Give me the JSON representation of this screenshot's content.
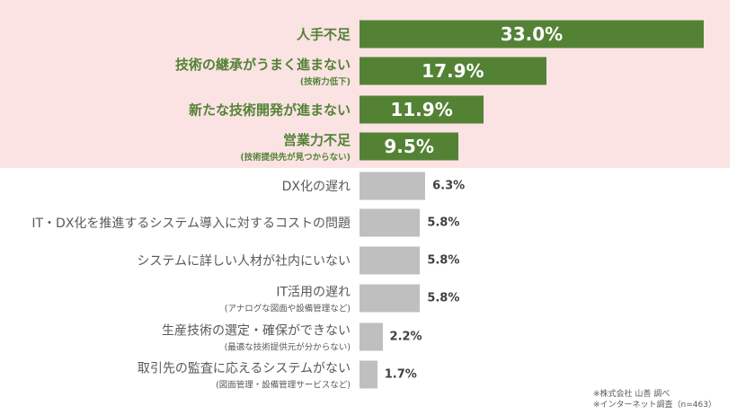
{
  "chart_data": {
    "type": "bar",
    "orientation": "horizontal",
    "categories": [
      "人手不足",
      "技術の継承がうまく進まない",
      "新たな技術開発が進まない",
      "営業力不足",
      "DX化の遅れ",
      "IT・DX化を推進するシステム導入に対するコストの問題",
      "システムに詳しい人材が社内にいない",
      "IT活用の遅れ",
      "生産技術の選定・確保ができない",
      "取引先の監査に応えるシステムがない"
    ],
    "sublabels": [
      "",
      "(技術力低下)",
      "",
      "(技術提供先が見つからない)",
      "",
      "",
      "",
      "(アナログな図面や設備管理など)",
      "(最適な技術提供元が分からない)",
      "(図面管理・設備管理サービスなど)"
    ],
    "values": [
      33.0,
      17.9,
      11.9,
      9.5,
      6.3,
      5.8,
      5.8,
      5.8,
      2.2,
      1.7
    ],
    "value_labels": [
      "33.0%",
      "17.9%",
      "11.9%",
      "9.5%",
      "6.3%",
      "5.8%",
      "5.8%",
      "5.8%",
      "2.2%",
      "1.7%"
    ],
    "highlighted": [
      true,
      true,
      true,
      true,
      false,
      false,
      false,
      false,
      false,
      false
    ],
    "xlim": [
      0,
      35
    ],
    "colors": {
      "highlight": "#548235",
      "normal": "#bfbfbf",
      "highlight_bg": "#fbe3e4"
    }
  },
  "notes": [
    "※株式会社 山善 調べ",
    "※インターネット調査（n=463）"
  ]
}
